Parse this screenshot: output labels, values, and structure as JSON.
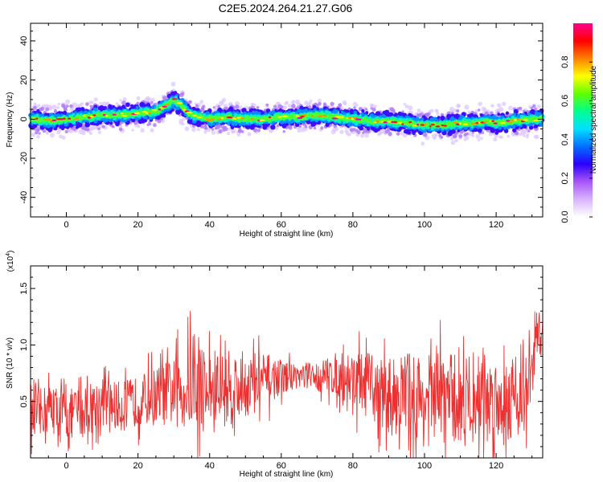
{
  "figure": {
    "title": "C2E5.2024.264.21.27.G06"
  },
  "chart_data": [
    {
      "type": "heatmap",
      "xlabel": "Height of straight line (km)",
      "ylabel": "Frequency (Hz)",
      "xlim": [
        -10,
        133
      ],
      "ylim": [
        -50,
        49
      ],
      "xticks": [
        0,
        20,
        40,
        60,
        80,
        100,
        120
      ],
      "yticks": [
        -40,
        -20,
        0,
        20,
        40
      ],
      "grid": false,
      "ridge": {
        "x": [
          -10,
          -5,
          0,
          5,
          10,
          15,
          20,
          25,
          28,
          30,
          32,
          35,
          40,
          45,
          50,
          55,
          60,
          65,
          70,
          75,
          80,
          85,
          90,
          95,
          100,
          105,
          110,
          115,
          117,
          120,
          125,
          130,
          133
        ],
        "y": [
          0,
          -1,
          0,
          1,
          2,
          2,
          3,
          4,
          7,
          10,
          7,
          2,
          0,
          1,
          0,
          0,
          1,
          1,
          2,
          1,
          0,
          -1,
          -1,
          -2,
          -3,
          -3,
          -2,
          -2,
          -1,
          -2,
          -1,
          0,
          0
        ]
      },
      "colorbar": {
        "label": "Normalized spectral amplitude",
        "range": [
          0,
          1
        ],
        "ticks": [
          0.0,
          0.2,
          0.4,
          0.6,
          0.8
        ],
        "colors": [
          "#ffffff",
          "#d8b4fe",
          "#a855f7",
          "#2a00ff",
          "#0070ff",
          "#00e0ff",
          "#00ff90",
          "#60ff00",
          "#ffff00",
          "#ff8000",
          "#ff0000",
          "#ff0090"
        ]
      }
    },
    {
      "type": "line",
      "xlabel": "Height of straight line (km)",
      "ylabel": "SNR (10 * v/v)",
      "scale_note": "(x10",
      "scale_exp": "4",
      "xlim": [
        -10,
        133
      ],
      "ylim": [
        0,
        1.7
      ],
      "xticks": [
        0,
        20,
        40,
        60,
        80,
        100,
        120
      ],
      "yticks": [
        0.5,
        1.0,
        1.5
      ],
      "ytick_labels": [
        "0.5",
        "1.0",
        "1.5"
      ],
      "color": "#ee3030",
      "envelope": {
        "x": [
          -10,
          -5,
          0,
          5,
          10,
          15,
          20,
          25,
          30,
          35,
          40,
          45,
          50,
          55,
          60,
          65,
          70,
          75,
          80,
          85,
          90,
          95,
          100,
          105,
          110,
          115,
          120,
          125,
          128,
          130,
          131,
          133
        ],
        "mean": [
          0.35,
          0.45,
          0.38,
          0.42,
          0.5,
          0.45,
          0.5,
          0.55,
          0.58,
          0.65,
          0.6,
          0.62,
          0.65,
          0.68,
          0.72,
          0.73,
          0.72,
          0.74,
          0.7,
          0.62,
          0.55,
          0.58,
          0.5,
          0.55,
          0.5,
          0.55,
          0.52,
          0.55,
          0.55,
          0.7,
          1.05,
          1.15
        ],
        "amp": [
          0.25,
          0.3,
          0.3,
          0.3,
          0.3,
          0.3,
          0.3,
          0.35,
          0.4,
          0.55,
          0.5,
          0.45,
          0.4,
          0.35,
          0.2,
          0.15,
          0.18,
          0.25,
          0.35,
          0.4,
          0.45,
          0.5,
          0.55,
          0.55,
          0.55,
          0.55,
          0.5,
          0.5,
          0.45,
          0.4,
          0.35,
          0.3
        ]
      }
    }
  ]
}
